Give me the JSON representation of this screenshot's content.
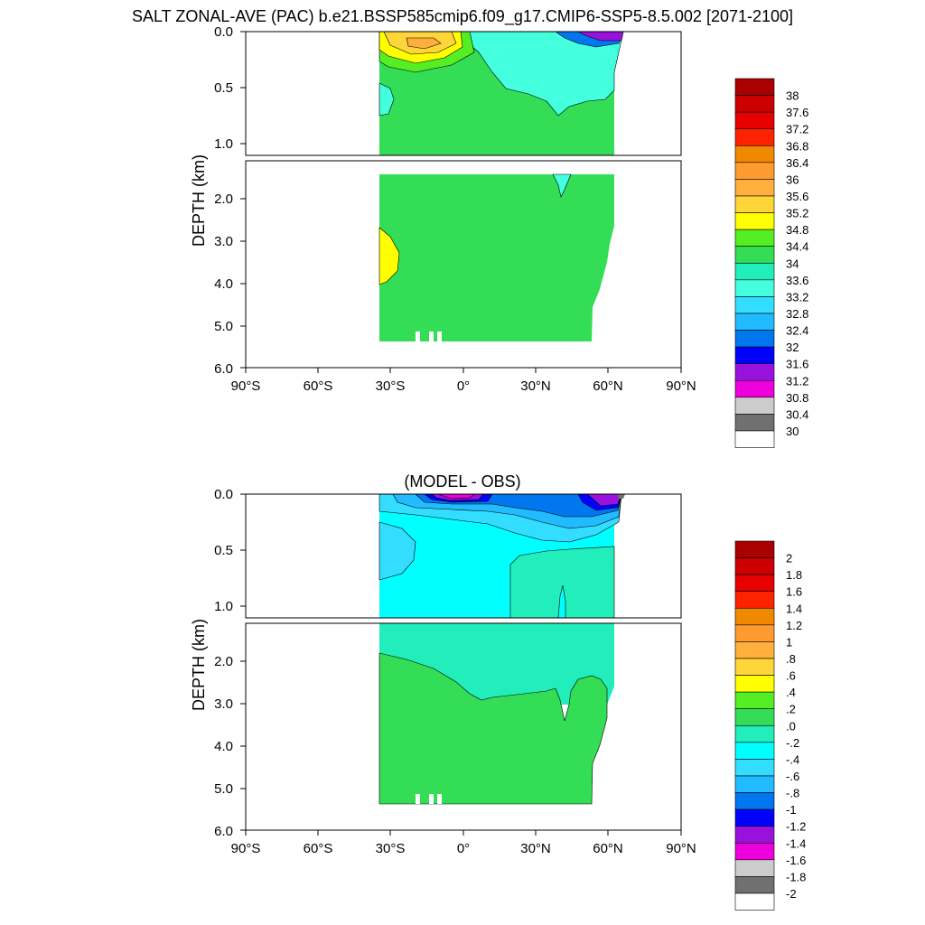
{
  "chart_data": [
    {
      "type": "heatmap",
      "title": "SALT ZONAL-AVE (PAC) b.e21.BSSP585cmip6.f09_g17.CMIP6-SSP5-8.5.002 [2071-2100]",
      "ylabel": "DEPTH (km)",
      "x_ticks": [
        "90°S",
        "60°S",
        "30°S",
        "0°",
        "30°N",
        "60°N",
        "90°N"
      ],
      "y_ticks_upper": [
        "0.0",
        "0.5",
        "1.0"
      ],
      "y_ticks_lower": [
        "2.0",
        "3.0",
        "4.0",
        "5.0",
        "6.0"
      ],
      "xlim": [
        -90,
        90
      ],
      "ylim_km": [
        0,
        6
      ],
      "colorbar_labels": [
        "38",
        "37.6",
        "37.2",
        "36.8",
        "36.4",
        "36",
        "35.6",
        "35.2",
        "34.8",
        "34.4",
        "34",
        "33.6",
        "33.2",
        "32.8",
        "32.4",
        "32",
        "31.6",
        "31.2",
        "30.8",
        "30.4",
        "30"
      ],
      "colors": [
        "#aa0000",
        "#cc0000",
        "#e60000",
        "#ff2200",
        "#f08800",
        "#ff9a2e",
        "#ffb03c",
        "#ffd63a",
        "#ffff00",
        "#55ee22",
        "#33dd55",
        "#22eebb",
        "#44ffdd",
        "#33ddff",
        "#22bbff",
        "#0077ee",
        "#0000ff",
        "#9911dd",
        "#ee00dd",
        "#cccccc",
        "#707070",
        "#ffffff"
      ]
    },
    {
      "type": "heatmap",
      "title": "(MODEL - OBS)",
      "ylabel": "DEPTH (km)",
      "x_ticks": [
        "90°S",
        "60°S",
        "30°S",
        "0°",
        "30°N",
        "60°N",
        "90°N"
      ],
      "y_ticks_upper": [
        "0.0",
        "0.5",
        "1.0"
      ],
      "y_ticks_lower": [
        "2.0",
        "3.0",
        "4.0",
        "5.0",
        "6.0"
      ],
      "xlim": [
        -90,
        90
      ],
      "ylim_km": [
        0,
        6
      ],
      "colorbar_labels": [
        "2",
        "1.8",
        "1.6",
        "1.4",
        "1.2",
        "1",
        ".8",
        ".6",
        ".4",
        ".2",
        ".0",
        "-.2",
        "-.4",
        "-.6",
        "-.8",
        "-1",
        "-1.2",
        "-1.4",
        "-1.6",
        "-1.8",
        "-2"
      ],
      "colors": [
        "#aa0000",
        "#cc0000",
        "#e60000",
        "#ff2200",
        "#f08800",
        "#ff9a2e",
        "#ffb03c",
        "#ffd63a",
        "#ffff00",
        "#55ee22",
        "#33dd55",
        "#22eebb",
        "#00ffff",
        "#33ddff",
        "#22bbff",
        "#0077ee",
        "#0000ff",
        "#9911dd",
        "#ee00dd",
        "#cccccc",
        "#707070",
        "#ffffff"
      ]
    }
  ]
}
